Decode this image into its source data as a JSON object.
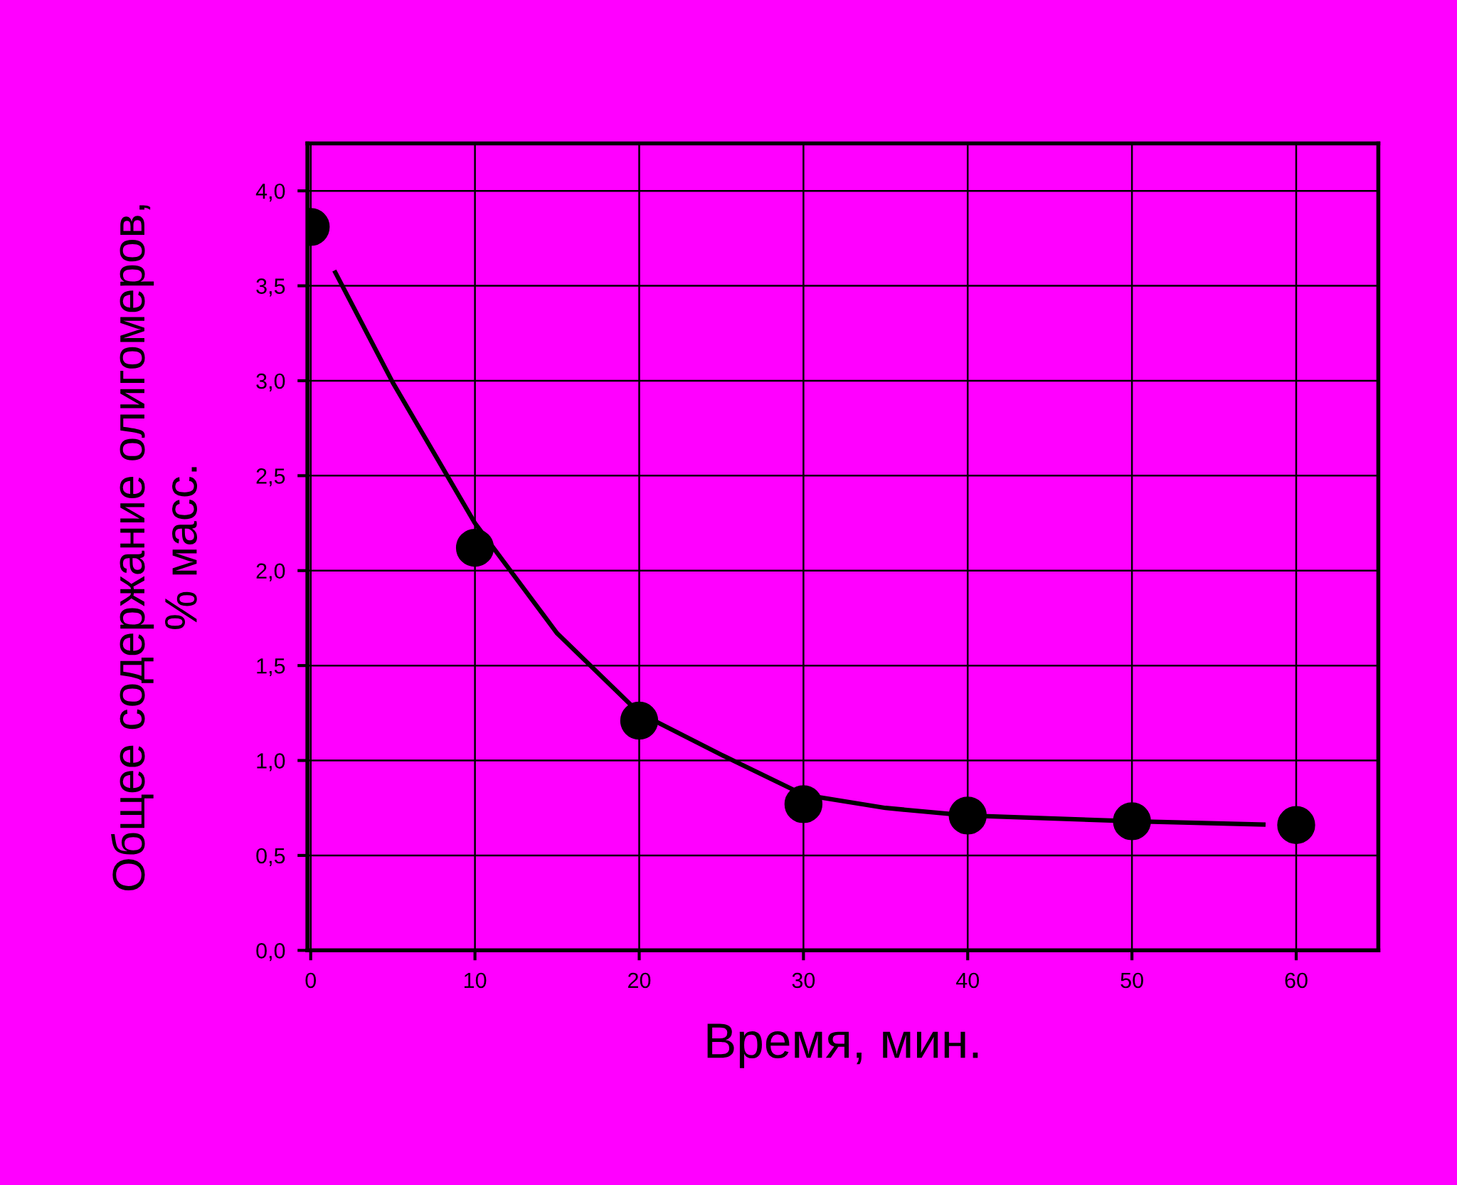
{
  "chart_data": {
    "type": "line",
    "xlabel": "Время, мин.",
    "ylabel": "Общее содержание олигомеров,\n% масс.",
    "series": [
      {
        "type": "scatter",
        "marker": "circle",
        "color": "#000000",
        "x": [
          0,
          10,
          20,
          30,
          40,
          50,
          60
        ],
        "values": [
          3.81,
          2.12,
          1.21,
          0.77,
          0.71,
          0.68,
          0.66
        ]
      },
      {
        "color": "#000000",
        "x": [
          1.5,
          5,
          10,
          15,
          20,
          25,
          30,
          35,
          40,
          50,
          58
        ],
        "values": [
          3.57,
          2.99,
          2.25,
          1.67,
          1.25,
          1.03,
          0.82,
          0.75,
          0.71,
          0.68,
          0.663
        ]
      }
    ],
    "xlim": [
      -0.2,
      65
    ],
    "ylim": [
      0,
      4.25
    ],
    "xticks": [
      0,
      10,
      20,
      30,
      40,
      50,
      60
    ],
    "yticks": [
      {
        "value": 0,
        "label": "0,0"
      },
      {
        "value": 0.5,
        "label": "0,5"
      },
      {
        "value": 1.0,
        "label": "1,0"
      },
      {
        "value": 1.5,
        "label": "1,5"
      },
      {
        "value": 2.0,
        "label": "2,0"
      },
      {
        "value": 2.5,
        "label": "2,5"
      },
      {
        "value": 3.0,
        "label": "3,0"
      },
      {
        "value": 3.5,
        "label": "3,5"
      },
      {
        "value": 4.0,
        "label": "4,0"
      }
    ],
    "grid": true,
    "line_style": "solid",
    "legend": false
  }
}
